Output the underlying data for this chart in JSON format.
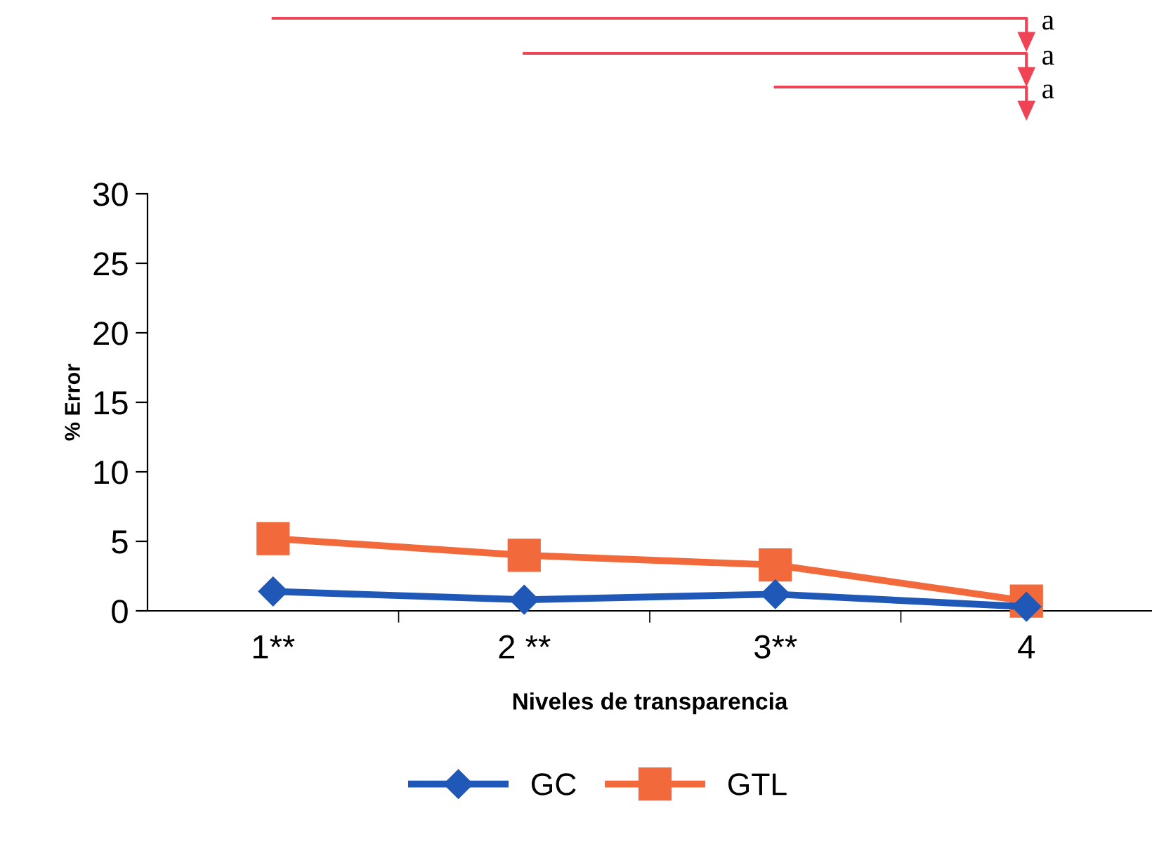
{
  "chart_data": {
    "type": "line",
    "categories": [
      "1**",
      "2 **",
      "3**",
      "4"
    ],
    "xlabel": "Niveles de transparencia",
    "ylabel": "% Error",
    "ylim": [
      0,
      30
    ],
    "yticks": [
      0,
      5,
      10,
      15,
      20,
      25,
      30
    ],
    "grid": false,
    "legend": "bottom",
    "series": [
      {
        "name": "GC",
        "color": "#2058b8",
        "marker": "diamond",
        "values": [
          1.4,
          0.8,
          1.2,
          0.3
        ]
      },
      {
        "name": "GTL",
        "color": "#f26a3c",
        "marker": "square",
        "values": [
          5.2,
          4.0,
          3.3,
          0.7
        ]
      }
    ],
    "annotations": [
      "a",
      "a",
      "a"
    ]
  }
}
